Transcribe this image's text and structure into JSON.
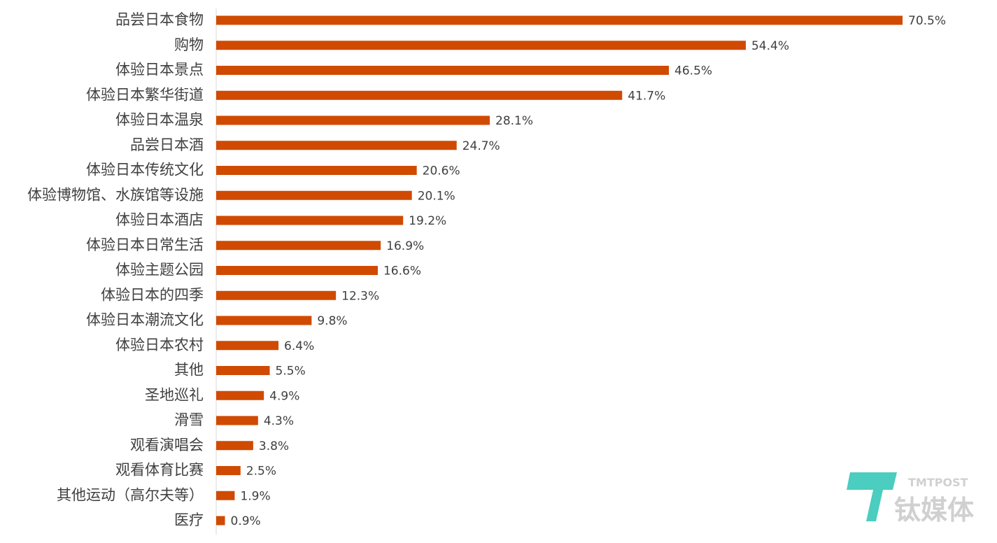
{
  "chart_data": {
    "type": "bar",
    "orientation": "horizontal",
    "categories": [
      "品尝日本食物",
      "购物",
      "体验日本景点",
      "体验日本繁华街道",
      "体验日本温泉",
      "品尝日本酒",
      "体验日本传统文化",
      "体验博物馆、水族馆等设施",
      "体验日本酒店",
      "体验日本日常生活",
      "体验主题公园",
      "体验日本的四季",
      "体验日本潮流文化",
      "体验日本农村",
      "其他",
      "圣地巡礼",
      "滑雪",
      "观看演唱会",
      "观看体育比赛",
      "其他运动（高尔夫等）",
      "医疗"
    ],
    "values": [
      70.5,
      54.4,
      46.5,
      41.7,
      28.1,
      24.7,
      20.6,
      20.1,
      19.2,
      16.9,
      16.6,
      12.3,
      9.8,
      6.4,
      5.5,
      4.9,
      4.3,
      3.8,
      2.5,
      1.9,
      0.9
    ],
    "value_labels": [
      "70.5%",
      "54.4%",
      "46.5%",
      "41.7%",
      "28.1%",
      "24.7%",
      "20.6%",
      "20.1%",
      "19.2%",
      "16.9%",
      "16.6%",
      "12.3%",
      "9.8%",
      "6.4%",
      "5.5%",
      "4.9%",
      "4.3%",
      "3.8%",
      "2.5%",
      "1.9%",
      "0.9%"
    ],
    "color": "#d04a02"
  },
  "watermark": {
    "brand": "TMTPOST",
    "name": "钛媒体"
  }
}
